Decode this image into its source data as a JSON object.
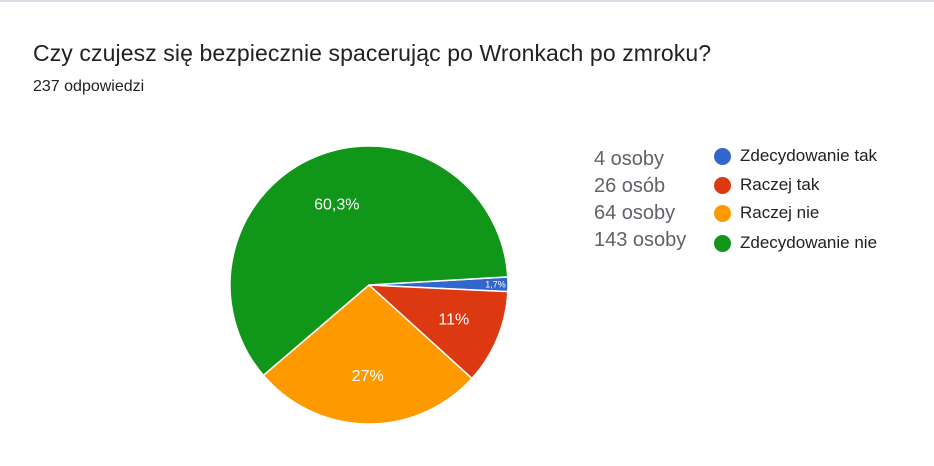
{
  "header": {
    "title": "Czy czujesz się bezpiecznie spacerując po Wronkach po zmroku?",
    "response_count": "237 odpowiedzi"
  },
  "chart_data": {
    "type": "pie",
    "categories": [
      "Zdecydowanie tak",
      "Raczej tak",
      "Raczej nie",
      "Zdecydowanie nie"
    ],
    "values": [
      4,
      26,
      64,
      143
    ],
    "percent_labels": [
      "1,7%",
      "11%",
      "27%",
      "60,3%"
    ],
    "counts": [
      "4 osoby",
      "26 osób",
      "64 osoby",
      "143 osoby"
    ],
    "colors": [
      "#3366cc",
      "#dc3912",
      "#ff9900",
      "#109618"
    ],
    "legend_position": "right"
  }
}
